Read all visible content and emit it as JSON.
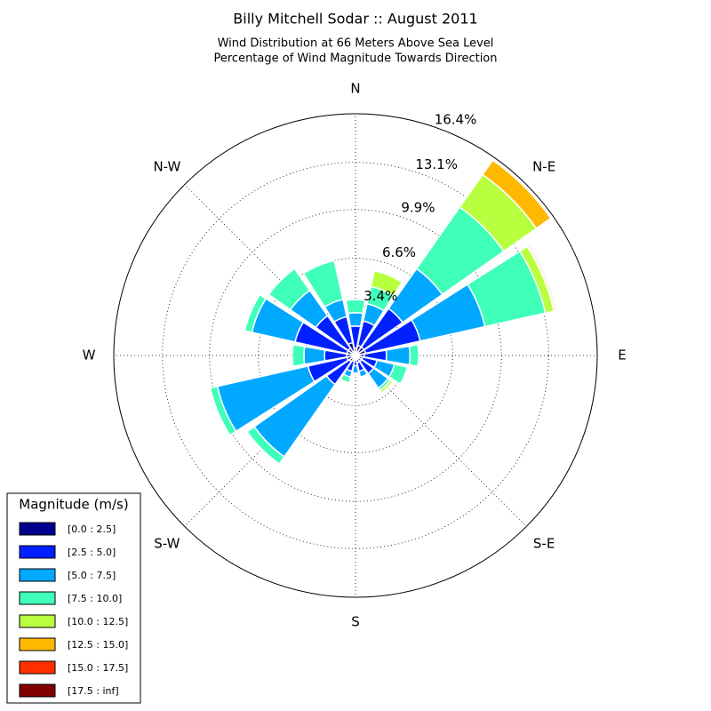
{
  "chart_data": {
    "type": "windrose",
    "title": "Billy Mitchell Sodar :: August 2011",
    "subtitle": [
      "Wind Distribution at 66 Meters Above Sea Level",
      "Percentage of Wind Magnitude Towards Direction"
    ],
    "categories": [
      "N",
      null,
      "N-E",
      null,
      "E",
      null,
      "S-E",
      null,
      "S",
      null,
      "S-W",
      null,
      "W",
      null,
      "N-W",
      null
    ],
    "legend_title": "Magnitude (m/s)",
    "legend_position": "lower left",
    "ylim": [
      0,
      16.4
    ],
    "yticks": [
      {
        "value": 3.4,
        "label": "3.4%"
      },
      {
        "value": 6.6,
        "label": "6.6%"
      },
      {
        "value": 9.9,
        "label": "9.9%"
      },
      {
        "value": 13.1,
        "label": "13.1%"
      },
      {
        "value": 16.4,
        "label": "16.4%"
      }
    ],
    "grid": true,
    "series": [
      {
        "name": "[0.0 : 2.5]",
        "color": "#00008f",
        "values": [
          0.5,
          0.7,
          0.7,
          0.7,
          0.6,
          0.5,
          0.5,
          0.5,
          0.3,
          0.4,
          0.5,
          0.6,
          0.6,
          0.6,
          0.6,
          0.9
        ]
      },
      {
        "name": "[2.5 : 5.0]",
        "color": "#0020ff",
        "values": [
          1.5,
          1.7,
          3.2,
          3.8,
          1.5,
          1.0,
          1.0,
          0.6,
          0.4,
          0.7,
          1.9,
          2.7,
          1.5,
          3.6,
          2.7,
          1.8
        ]
      },
      {
        "name": "[5.0 : 7.5]",
        "color": "#00a8ff",
        "values": [
          0.9,
          1.2,
          3.3,
          4.5,
          1.6,
          1.2,
          1.2,
          0.4,
          0.5,
          0.4,
          6.0,
          6.3,
          1.4,
          3.0,
          2.1,
          1.2
        ]
      },
      {
        "name": "[7.5 : 10.0]",
        "color": "#40ffb8",
        "values": [
          0.9,
          1.2,
          5.1,
          4.2,
          0.6,
          0.9,
          0.2,
          0,
          0,
          0.4,
          0.6,
          0.5,
          0.8,
          0.5,
          1.8,
          2.7
        ]
      },
      {
        "name": "[10.0 : 12.5]",
        "color": "#b8ff40",
        "values": [
          0,
          1.1,
          2.7,
          0.6,
          0,
          0,
          0.2,
          0,
          0,
          0,
          0,
          0,
          0,
          0,
          0,
          0
        ]
      },
      {
        "name": "[12.5 : 15.0]",
        "color": "#ffb800",
        "values": [
          0,
          0,
          1.2,
          0.1,
          0,
          0,
          0,
          0,
          0,
          0,
          0,
          0,
          0,
          0,
          0,
          0
        ]
      },
      {
        "name": "[15.0 : 17.5]",
        "color": "#ff3000",
        "values": [
          0,
          0,
          0,
          0.1,
          0,
          0,
          0,
          0,
          0,
          0,
          0,
          0,
          0,
          0,
          0,
          0
        ]
      },
      {
        "name": "[17.5 : inf]",
        "color": "#800000",
        "values": [
          0,
          0,
          0,
          0,
          0,
          0,
          0,
          0,
          0,
          0,
          0,
          0,
          0,
          0,
          0,
          0
        ]
      }
    ]
  }
}
